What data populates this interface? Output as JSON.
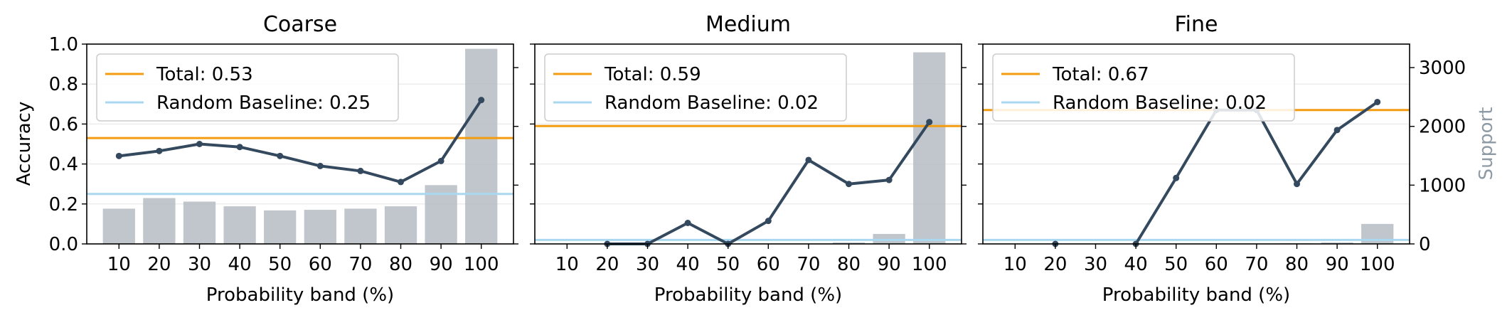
{
  "shared": {
    "xlabel": "Probability band (%)",
    "ylabel_left": "Accuracy",
    "ylabel_right": "Support",
    "colors": {
      "bar": "#b5bcc2",
      "line": "#34495e",
      "total": "#f39c12",
      "baseline": "#a9d8f0",
      "grid": "#ececec",
      "support_label": "#8e9aa4"
    }
  },
  "chart_data": [
    {
      "type": "bar",
      "title": "Coarse",
      "categories": [
        "10",
        "20",
        "30",
        "40",
        "50",
        "60",
        "70",
        "80",
        "90",
        "100"
      ],
      "ylim": [
        0,
        1
      ],
      "y2lim": [
        0,
        3400
      ],
      "yticks": [
        "0.0",
        "0.2",
        "0.4",
        "0.6",
        "0.8",
        "1.0"
      ],
      "series": [
        {
          "kind": "bar",
          "axis": "right",
          "values": [
            600,
            780,
            720,
            640,
            570,
            580,
            600,
            640,
            1000,
            3320
          ]
        },
        {
          "kind": "line",
          "axis": "left",
          "values": [
            0.44,
            0.465,
            0.5,
            0.485,
            0.44,
            0.39,
            0.365,
            0.31,
            0.415,
            0.72
          ]
        }
      ],
      "total": {
        "value": 0.53,
        "label": "Total: 0.53"
      },
      "baseline": {
        "value": 0.25,
        "label": "Random Baseline: 0.25"
      }
    },
    {
      "type": "bar",
      "title": "Medium",
      "categories": [
        "10",
        "20",
        "30",
        "40",
        "50",
        "60",
        "70",
        "80",
        "90",
        "100"
      ],
      "ylim": [
        0,
        1
      ],
      "y2lim": [
        0,
        3400
      ],
      "series": [
        {
          "kind": "bar",
          "axis": "right",
          "values": [
            0,
            0,
            0,
            0,
            0,
            5,
            5,
            25,
            170,
            3260
          ]
        },
        {
          "kind": "line",
          "axis": "left",
          "values": [
            null,
            0.0,
            0.0,
            0.105,
            0.0,
            0.115,
            0.42,
            0.3,
            0.32,
            0.61
          ]
        }
      ],
      "total": {
        "value": 0.59,
        "label": "Total: 0.59"
      },
      "baseline": {
        "value": 0.02,
        "label": "Random Baseline: 0.02"
      }
    },
    {
      "type": "bar",
      "title": "Fine",
      "categories": [
        "10",
        "20",
        "30",
        "40",
        "50",
        "60",
        "70",
        "80",
        "90",
        "100"
      ],
      "ylim": [
        0,
        1
      ],
      "y2lim": [
        0,
        3400
      ],
      "y2ticks": [
        "0",
        "1000",
        "2000",
        "3000"
      ],
      "series": [
        {
          "kind": "bar",
          "axis": "right",
          "values": [
            0,
            0,
            0,
            0,
            5,
            5,
            5,
            10,
            25,
            340
          ]
        },
        {
          "kind": "line",
          "axis": "left",
          "values": [
            null,
            0.0,
            null,
            0.0,
            0.33,
            0.67,
            0.67,
            0.3,
            0.57,
            0.71
          ]
        }
      ],
      "total": {
        "value": 0.67,
        "label": "Total: 0.67"
      },
      "baseline": {
        "value": 0.02,
        "label": "Random Baseline: 0.02"
      }
    }
  ]
}
